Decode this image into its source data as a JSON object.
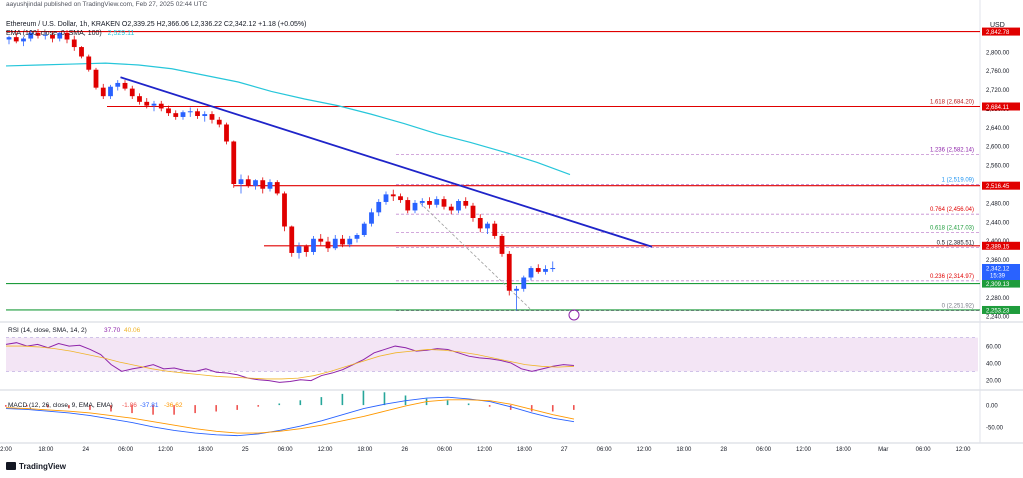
{
  "header": {
    "published_by": "aayushjindal published on TradingView.com, Feb 27, 2025 02:44 UTC",
    "symbol_line": "Ethereum / U.S. Dollar, 1h, KRAKEN  O2,339.25  H2,366.06  L2,336.22  C2,342.12  +1.18 (+0.05%)",
    "ema_label": "EMA (100, close, 0, SMA, 100)",
    "ema_value": "2,529.11"
  },
  "footer": {
    "brand": "TradingView"
  },
  "colors": {
    "up": "#2962ff",
    "down": "#e00000",
    "ema": "#26c6da",
    "trend": "#1f24c9",
    "resistance": "#e00000",
    "support": "#1e9c3c",
    "rsi": "#8e24aa",
    "macd": "#2962ff",
    "signal": "#ff9800"
  },
  "chart_data": [
    {
      "type": "candlestick",
      "title": "Ethereum / U.S. Dollar, 1h, KRAKEN",
      "currency_label": "USD",
      "ylim": [
        2232,
        2880
      ],
      "price_ticks": [
        "2,800.00",
        "2,760.00",
        "2,720.00",
        "2,680.00",
        "2,640.00",
        "2,600.00",
        "2,560.00",
        "2,520.00",
        "2,480.00",
        "2,440.00",
        "2,400.00",
        "2,360.00",
        "2,320.00",
        "2,280.00",
        "2,240.00"
      ],
      "time_ticks": [
        "2:00",
        "18:00",
        "24",
        "06:00",
        "12:00",
        "18:00",
        "25",
        "06:00",
        "12:00",
        "18:00",
        "26",
        "06:00",
        "12:00",
        "18:00",
        "27",
        "06:00",
        "12:00",
        "18:00",
        "28",
        "06:00",
        "12:00",
        "18:00",
        "Mar",
        "06:00",
        "12:00"
      ],
      "candles": [
        [
          2826,
          2834,
          2816,
          2831
        ],
        [
          2831,
          2840,
          2818,
          2822
        ],
        [
          2822,
          2832,
          2812,
          2828
        ],
        [
          2828,
          2846,
          2822,
          2840
        ],
        [
          2840,
          2848,
          2828,
          2834
        ],
        [
          2834,
          2842,
          2826,
          2836
        ],
        [
          2836,
          2842,
          2820,
          2828
        ],
        [
          2828,
          2842,
          2822,
          2840
        ],
        [
          2840,
          2846,
          2818,
          2826
        ],
        [
          2826,
          2834,
          2802,
          2810
        ],
        [
          2810,
          2812,
          2786,
          2790
        ],
        [
          2790,
          2794,
          2758,
          2762
        ],
        [
          2762,
          2766,
          2720,
          2724
        ],
        [
          2724,
          2732,
          2700,
          2706
        ],
        [
          2706,
          2730,
          2700,
          2726
        ],
        [
          2726,
          2740,
          2718,
          2734
        ],
        [
          2734,
          2740,
          2718,
          2722
        ],
        [
          2722,
          2728,
          2700,
          2706
        ],
        [
          2706,
          2712,
          2688,
          2694
        ],
        [
          2694,
          2702,
          2680,
          2686
        ],
        [
          2686,
          2696,
          2674,
          2690
        ],
        [
          2690,
          2696,
          2674,
          2680
        ],
        [
          2680,
          2686,
          2664,
          2670
        ],
        [
          2670,
          2676,
          2656,
          2662
        ],
        [
          2662,
          2676,
          2656,
          2672
        ],
        [
          2672,
          2682,
          2662,
          2674
        ],
        [
          2674,
          2680,
          2658,
          2664
        ],
        [
          2664,
          2674,
          2652,
          2668
        ],
        [
          2668,
          2674,
          2648,
          2656
        ],
        [
          2656,
          2662,
          2640,
          2646
        ],
        [
          2646,
          2650,
          2604,
          2610
        ],
        [
          2610,
          2612,
          2512,
          2520
        ],
        [
          2520,
          2540,
          2500,
          2530
        ],
        [
          2530,
          2538,
          2512,
          2516
        ],
        [
          2516,
          2530,
          2508,
          2528
        ],
        [
          2528,
          2534,
          2500,
          2510
        ],
        [
          2510,
          2530,
          2504,
          2524
        ],
        [
          2524,
          2528,
          2496,
          2500
        ],
        [
          2500,
          2504,
          2420,
          2430
        ],
        [
          2430,
          2432,
          2366,
          2374
        ],
        [
          2374,
          2396,
          2362,
          2388
        ],
        [
          2388,
          2392,
          2366,
          2376
        ],
        [
          2376,
          2410,
          2370,
          2404
        ],
        [
          2404,
          2414,
          2390,
          2398
        ],
        [
          2398,
          2408,
          2376,
          2384
        ],
        [
          2384,
          2412,
          2380,
          2404
        ],
        [
          2404,
          2412,
          2386,
          2392
        ],
        [
          2392,
          2410,
          2386,
          2404
        ],
        [
          2404,
          2416,
          2396,
          2412
        ],
        [
          2412,
          2440,
          2408,
          2436
        ],
        [
          2436,
          2468,
          2430,
          2460
        ],
        [
          2460,
          2488,
          2452,
          2482
        ],
        [
          2482,
          2504,
          2476,
          2498
        ],
        [
          2498,
          2508,
          2484,
          2494
        ],
        [
          2494,
          2500,
          2480,
          2486
        ],
        [
          2486,
          2492,
          2458,
          2464
        ],
        [
          2464,
          2486,
          2458,
          2480
        ],
        [
          2480,
          2490,
          2472,
          2484
        ],
        [
          2484,
          2492,
          2468,
          2476
        ],
        [
          2476,
          2494,
          2470,
          2488
        ],
        [
          2488,
          2494,
          2466,
          2472
        ],
        [
          2472,
          2478,
          2456,
          2464
        ],
        [
          2464,
          2488,
          2458,
          2484
        ],
        [
          2484,
          2492,
          2468,
          2474
        ],
        [
          2474,
          2480,
          2440,
          2448
        ],
        [
          2448,
          2456,
          2418,
          2426
        ],
        [
          2426,
          2440,
          2414,
          2436
        ],
        [
          2436,
          2442,
          2404,
          2410
        ],
        [
          2410,
          2414,
          2366,
          2372
        ],
        [
          2372,
          2378,
          2284,
          2294
        ],
        [
          2294,
          2304,
          2252,
          2298
        ],
        [
          2298,
          2326,
          2292,
          2322
        ],
        [
          2322,
          2346,
          2316,
          2342
        ],
        [
          2342,
          2350,
          2330,
          2334
        ],
        [
          2334,
          2348,
          2328,
          2340
        ],
        [
          2340,
          2356,
          2334,
          2342
        ]
      ],
      "ema100": [
        2770,
        2772,
        2774,
        2776,
        2772,
        2764,
        2750,
        2736,
        2716,
        2700,
        2686,
        2668,
        2648,
        2626,
        2608,
        2588,
        2566,
        2540
      ],
      "trendline": {
        "from": [
          6,
          2746
        ],
        "to": [
          65,
          2366
        ]
      },
      "retracement_line": {
        "from": [
          60,
          2480
        ],
        "to": [
          69,
          2256
        ]
      },
      "fib_levels": [
        {
          "ratio": "1.618",
          "price": "2,684.20",
          "value": 2684.2
        },
        {
          "ratio": "1.236",
          "price": "2,582.14",
          "value": 2582.14
        },
        {
          "ratio": "1",
          "price": "2,519.09",
          "value": 2519.09
        },
        {
          "ratio": "0.764",
          "price": "2,456.04",
          "value": 2456.04
        },
        {
          "ratio": "0.618",
          "price": "2,417.03",
          "value": 2417.03
        },
        {
          "ratio": "0.5",
          "price": "2,385.51",
          "value": 2385.51
        },
        {
          "ratio": "0.236",
          "price": "2,314.97",
          "value": 2314.97
        },
        {
          "ratio": "0",
          "price": "2,251.92",
          "value": 2251.92
        }
      ],
      "horizontal_lines": [
        {
          "price": 2842.78,
          "label": "2,842.78",
          "color": "#e00000"
        },
        {
          "price": 2684.11,
          "label": "2,684.11",
          "color": "#e00000"
        },
        {
          "price": 2516.45,
          "label": "2,516.45",
          "color": "#e00000"
        },
        {
          "price": 2389.15,
          "label": "2,389.15",
          "color": "#e00000"
        },
        {
          "price": 2309.13,
          "label": "2,309.13",
          "color": "#1e9c3c"
        },
        {
          "price": 2253.23,
          "label": "2,253.23",
          "color": "#1e9c3c"
        }
      ],
      "current_price": {
        "label": "2,342.12",
        "countdown": "15:39",
        "value": 2342.12
      }
    },
    {
      "type": "line",
      "title": "RSI (14, close, SMA, 14, 2)",
      "values_label": [
        "37.70",
        "40.06"
      ],
      "ylim": [
        15,
        85
      ],
      "ticks": [
        "60.00",
        "40.00",
        "20.00"
      ],
      "band": [
        30,
        70
      ],
      "rsi": [
        62,
        64,
        60,
        62,
        58,
        63,
        60,
        61,
        56,
        50,
        38,
        30,
        33,
        35,
        38,
        33,
        34,
        31,
        30,
        33,
        29,
        28,
        26,
        22,
        20,
        19,
        17,
        18,
        20,
        19,
        25,
        28,
        32,
        38,
        44,
        52,
        56,
        60,
        58,
        54,
        55,
        57,
        56,
        52,
        48,
        46,
        45,
        43,
        40,
        33,
        30,
        33,
        36,
        38,
        37
      ],
      "rsi_ma": [
        60,
        60,
        59,
        57,
        54,
        50,
        46,
        41,
        37,
        33,
        30,
        28,
        26,
        24,
        23,
        22,
        21,
        21,
        22,
        25,
        30,
        36,
        42,
        48,
        52,
        54,
        56,
        55,
        53,
        50,
        46,
        42,
        38,
        36,
        35,
        36
      ]
    },
    {
      "type": "line",
      "title": "MACD (12, 26, close, 9, EMA, EMA)",
      "values_label": [
        "-1.86",
        "-37.81",
        "-36.62"
      ],
      "ylim": [
        -80,
        30
      ],
      "ticks": [
        "0.00",
        "-50.00"
      ],
      "macd": [
        -8,
        -10,
        -14,
        -18,
        -24,
        -32,
        -40,
        -50,
        -58,
        -64,
        -68,
        -70,
        -66,
        -58,
        -48,
        -36,
        -22,
        -8,
        2,
        10,
        16,
        18,
        14,
        8,
        -4,
        -18,
        -30,
        -38
      ],
      "signal": [
        -6,
        -8,
        -11,
        -14,
        -18,
        -24,
        -30,
        -38,
        -46,
        -54,
        -60,
        -64,
        -64,
        -60,
        -54,
        -46,
        -36,
        -26,
        -14,
        -2,
        8,
        12,
        12,
        10,
        2,
        -10,
        -22,
        -32
      ]
    }
  ]
}
